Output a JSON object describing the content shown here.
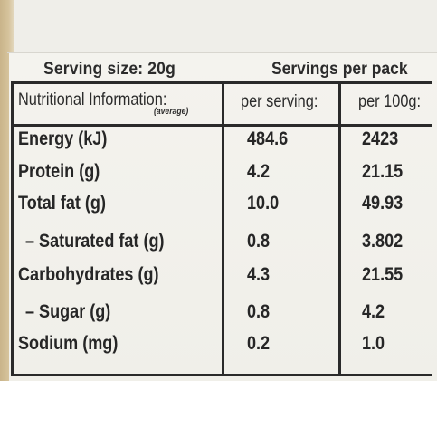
{
  "serving_line": {
    "serving_size": "Serving size: 20g",
    "servings_per_pack": "Servings per pack"
  },
  "table": {
    "header": {
      "label": "Nutritional Information:",
      "average": "(average)",
      "per_serving": "per serving:",
      "per_100g": "per 100g:"
    },
    "rows": [
      {
        "label": "Energy (kJ)",
        "per_serving": "484.6",
        "per_100g": "2423"
      },
      {
        "label": "Protein (g)",
        "per_serving": "4.2",
        "per_100g": "21.15"
      },
      {
        "label": "Total fat (g)",
        "per_serving": "10.0",
        "per_100g": "49.93"
      },
      {
        "label": "– Saturated fat (g)",
        "per_serving": "0.8",
        "per_100g": "3.802"
      },
      {
        "label": "Carbohydrates (g)",
        "per_serving": "4.3",
        "per_100g": "21.55"
      },
      {
        "label": "– Sugar (g)",
        "per_serving": "0.8",
        "per_100g": "4.2"
      },
      {
        "label": "Sodium (mg)",
        "per_serving": "0.2",
        "per_100g": "1.0"
      }
    ]
  }
}
